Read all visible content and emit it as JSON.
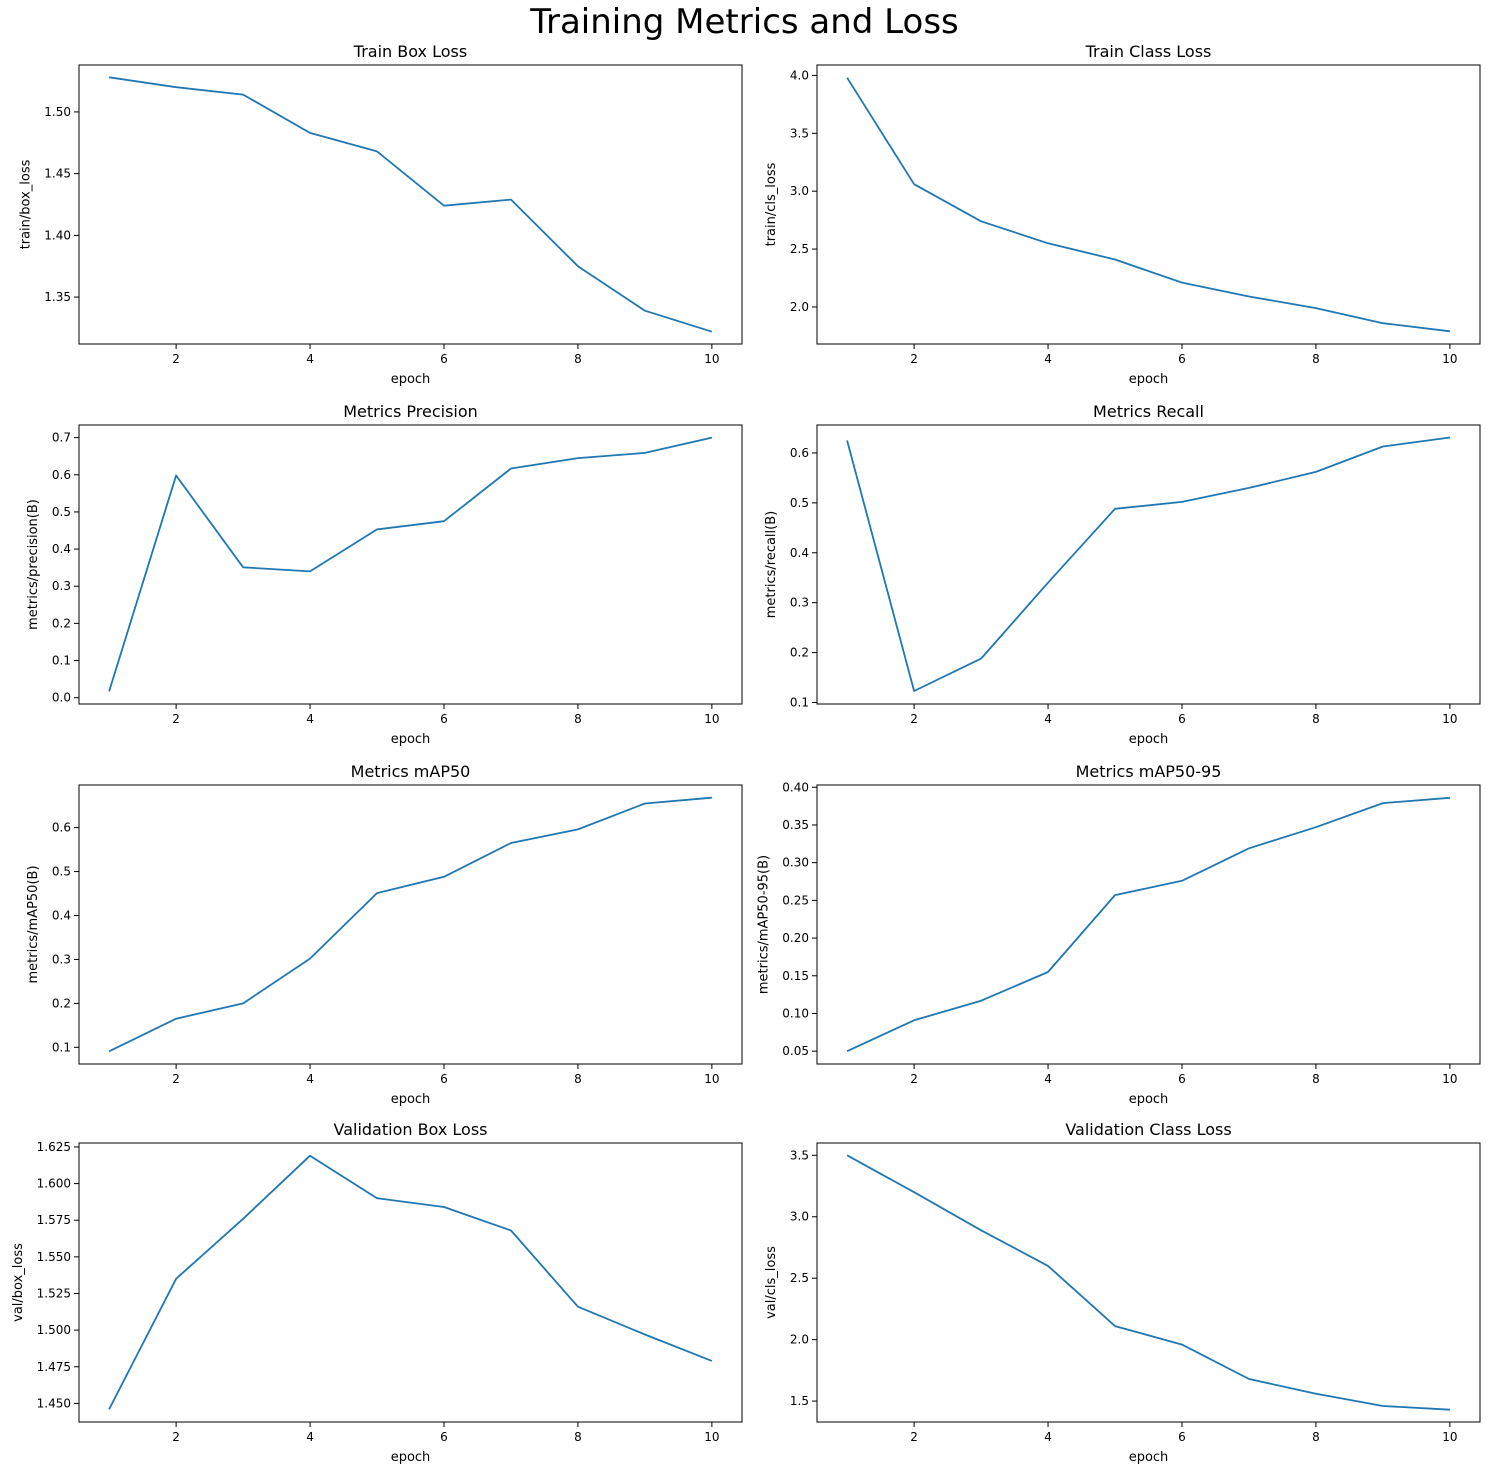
{
  "figure": {
    "title": "Training Metrics and Loss"
  },
  "colors": {
    "line": "#1f77b4",
    "axes": "#000000",
    "background": "#ffffff"
  },
  "chart_data": [
    {
      "type": "line",
      "title": "Train Box Loss",
      "xlabel": "epoch",
      "ylabel": "train/box_loss",
      "x": [
        1,
        2,
        3,
        4,
        5,
        6,
        7,
        8,
        9,
        10
      ],
      "values": [
        1.528,
        1.52,
        1.514,
        1.483,
        1.468,
        1.424,
        1.429,
        1.375,
        1.339,
        1.322
      ],
      "xlim": [
        0.55,
        10.45
      ],
      "ylim": [
        1.312,
        1.538
      ],
      "xticks": [
        2,
        4,
        6,
        8,
        10
      ],
      "yticks": [
        1.35,
        1.4,
        1.45,
        1.5
      ],
      "ytick_decimals": 2
    },
    {
      "type": "line",
      "title": "Train Class Loss",
      "xlabel": "epoch",
      "ylabel": "train/cls_loss",
      "x": [
        1,
        2,
        3,
        4,
        5,
        6,
        7,
        8,
        9,
        10
      ],
      "values": [
        3.98,
        3.06,
        2.74,
        2.55,
        2.41,
        2.21,
        2.09,
        1.99,
        1.86,
        1.79
      ],
      "xlim": [
        0.55,
        10.45
      ],
      "ylim": [
        1.68,
        4.09
      ],
      "xticks": [
        2,
        4,
        6,
        8,
        10
      ],
      "yticks": [
        2.0,
        2.5,
        3.0,
        3.5,
        4.0
      ],
      "ytick_decimals": 1
    },
    {
      "type": "line",
      "title": "Metrics Precision",
      "xlabel": "epoch",
      "ylabel": "metrics/precision(B)",
      "x": [
        1,
        2,
        3,
        4,
        5,
        6,
        7,
        8,
        9,
        10
      ],
      "values": [
        0.017,
        0.598,
        0.351,
        0.34,
        0.453,
        0.475,
        0.617,
        0.645,
        0.659,
        0.7
      ],
      "xlim": [
        0.55,
        10.45
      ],
      "ylim": [
        -0.017,
        0.734
      ],
      "xticks": [
        2,
        4,
        6,
        8,
        10
      ],
      "yticks": [
        0.0,
        0.1,
        0.2,
        0.3,
        0.4,
        0.5,
        0.6,
        0.7
      ],
      "ytick_decimals": 1
    },
    {
      "type": "line",
      "title": "Metrics Recall",
      "xlabel": "epoch",
      "ylabel": "metrics/recall(B)",
      "x": [
        1,
        2,
        3,
        4,
        5,
        6,
        7,
        8,
        9,
        10
      ],
      "values": [
        0.625,
        0.123,
        0.188,
        0.34,
        0.488,
        0.502,
        0.53,
        0.562,
        0.613,
        0.631
      ],
      "xlim": [
        0.55,
        10.45
      ],
      "ylim": [
        0.097,
        0.656
      ],
      "xticks": [
        2,
        4,
        6,
        8,
        10
      ],
      "yticks": [
        0.1,
        0.2,
        0.3,
        0.4,
        0.5,
        0.6
      ],
      "ytick_decimals": 1
    },
    {
      "type": "line",
      "title": "Metrics mAP50",
      "xlabel": "epoch",
      "ylabel": "metrics/mAP50(B)",
      "x": [
        1,
        2,
        3,
        4,
        5,
        6,
        7,
        8,
        9,
        10
      ],
      "values": [
        0.091,
        0.165,
        0.2,
        0.302,
        0.451,
        0.488,
        0.565,
        0.596,
        0.655,
        0.668
      ],
      "xlim": [
        0.55,
        10.45
      ],
      "ylim": [
        0.062,
        0.697
      ],
      "xticks": [
        2,
        4,
        6,
        8,
        10
      ],
      "yticks": [
        0.1,
        0.2,
        0.3,
        0.4,
        0.5,
        0.6
      ],
      "ytick_decimals": 1
    },
    {
      "type": "line",
      "title": "Metrics mAP50-95",
      "xlabel": "epoch",
      "ylabel": "metrics/mAP50-95(B)",
      "x": [
        1,
        2,
        3,
        4,
        5,
        6,
        7,
        8,
        9,
        10
      ],
      "values": [
        0.05,
        0.091,
        0.117,
        0.155,
        0.257,
        0.276,
        0.319,
        0.347,
        0.379,
        0.386
      ],
      "xlim": [
        0.55,
        10.45
      ],
      "ylim": [
        0.033,
        0.403
      ],
      "xticks": [
        2,
        4,
        6,
        8,
        10
      ],
      "yticks": [
        0.05,
        0.1,
        0.15,
        0.2,
        0.25,
        0.3,
        0.35,
        0.4
      ],
      "ytick_decimals": 2
    },
    {
      "type": "line",
      "title": "Validation Box Loss",
      "xlabel": "epoch",
      "ylabel": "val/box_loss",
      "x": [
        1,
        2,
        3,
        4,
        5,
        6,
        7,
        8,
        9,
        10
      ],
      "values": [
        1.446,
        1.535,
        1.576,
        1.619,
        1.59,
        1.584,
        1.568,
        1.516,
        1.497,
        1.479
      ],
      "xlim": [
        0.55,
        10.45
      ],
      "ylim": [
        1.4373,
        1.6277
      ],
      "xticks": [
        2,
        4,
        6,
        8,
        10
      ],
      "yticks": [
        1.45,
        1.475,
        1.5,
        1.525,
        1.55,
        1.575,
        1.6,
        1.625
      ],
      "ytick_decimals": 3
    },
    {
      "type": "line",
      "title": "Validation Class Loss",
      "xlabel": "epoch",
      "ylabel": "val/cls_loss",
      "x": [
        1,
        2,
        3,
        4,
        5,
        6,
        7,
        8,
        9,
        10
      ],
      "values": [
        3.5,
        3.2,
        2.89,
        2.6,
        2.11,
        1.96,
        1.68,
        1.56,
        1.46,
        1.43
      ],
      "xlim": [
        0.55,
        10.45
      ],
      "ylim": [
        1.33,
        3.6
      ],
      "xticks": [
        2,
        4,
        6,
        8,
        10
      ],
      "yticks": [
        1.5,
        2.0,
        2.5,
        3.0,
        3.5
      ],
      "ytick_decimals": 1
    }
  ]
}
